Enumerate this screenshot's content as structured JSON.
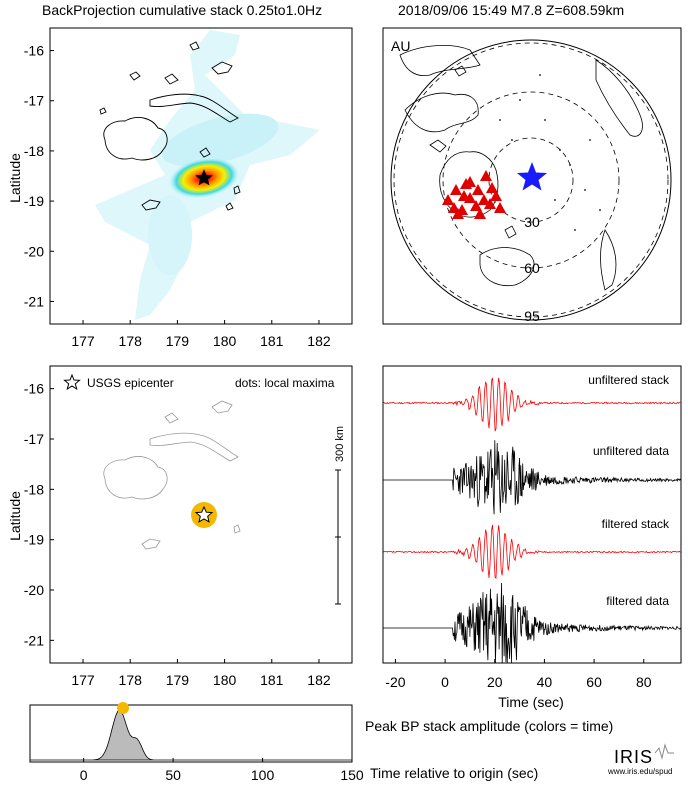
{
  "header": {
    "left_title": "BackProjection cumulative stack 0.25to1.0Hz",
    "right_title": "2018/09/06 15:49  M7.8  Z=608.59km"
  },
  "colors": {
    "red_trace": "#ff0000",
    "black_trace": "#000000",
    "epicenter_star_blue": "#1a1aff",
    "station_triangle_red": "#e00000",
    "peak_marker": "#f5b800",
    "stack_fill": "#bbbbbb"
  },
  "chart_data": [
    {
      "type": "heatmap",
      "name": "backprojection-map",
      "ylabel": "Latitude",
      "xticks": [
        "177",
        "178",
        "179",
        "180",
        "181",
        "182"
      ],
      "yticks": [
        "-16",
        "-17",
        "-18",
        "-19",
        "-20",
        "-21"
      ],
      "xlim": [
        176.3,
        182.7
      ],
      "ylim": [
        -21.45,
        -15.55
      ],
      "epicenter": {
        "lon": 179.35,
        "lat": -18.5
      }
    },
    {
      "type": "map",
      "name": "station-map",
      "network_label": "AU",
      "ring_labels": [
        "30",
        "60",
        "95"
      ],
      "ring_distances_deg": [
        30,
        60,
        95
      ]
    },
    {
      "type": "scatter",
      "name": "local-maxima-map",
      "ylabel": "Latitude",
      "xticks": [
        "177",
        "178",
        "179",
        "180",
        "181",
        "182"
      ],
      "yticks": [
        "-16",
        "-17",
        "-18",
        "-19",
        "-20",
        "-21"
      ],
      "xlim": [
        176.3,
        182.7
      ],
      "ylim": [
        -21.45,
        -15.55
      ],
      "legend_star": "USGS epicenter",
      "legend_dots": "dots: local maxima",
      "scalebar_label": "300 km",
      "epicenter": {
        "lon": 179.35,
        "lat": -18.5
      }
    },
    {
      "type": "line",
      "name": "seismograms",
      "xlabel": "Time (sec)",
      "xticks": [
        "-20",
        "0",
        "20",
        "40",
        "60",
        "80"
      ],
      "xlim": [
        -25,
        95
      ],
      "series": [
        {
          "name": "unfiltered stack"
        },
        {
          "name": "unfiltered data"
        },
        {
          "name": "filtered stack"
        },
        {
          "name": "filtered data"
        }
      ]
    },
    {
      "type": "area",
      "name": "peak-amplitude",
      "xlabel": "Time relative to origin (sec)",
      "title": "Peak BP stack amplitude (colors = time)",
      "xticks": [
        "0",
        "50",
        "100",
        "150"
      ],
      "xlim": [
        -30,
        150
      ],
      "peak_time": 22
    }
  ],
  "footer": {
    "logo_text": "IRIS",
    "url": "www.iris.edu/spud"
  }
}
